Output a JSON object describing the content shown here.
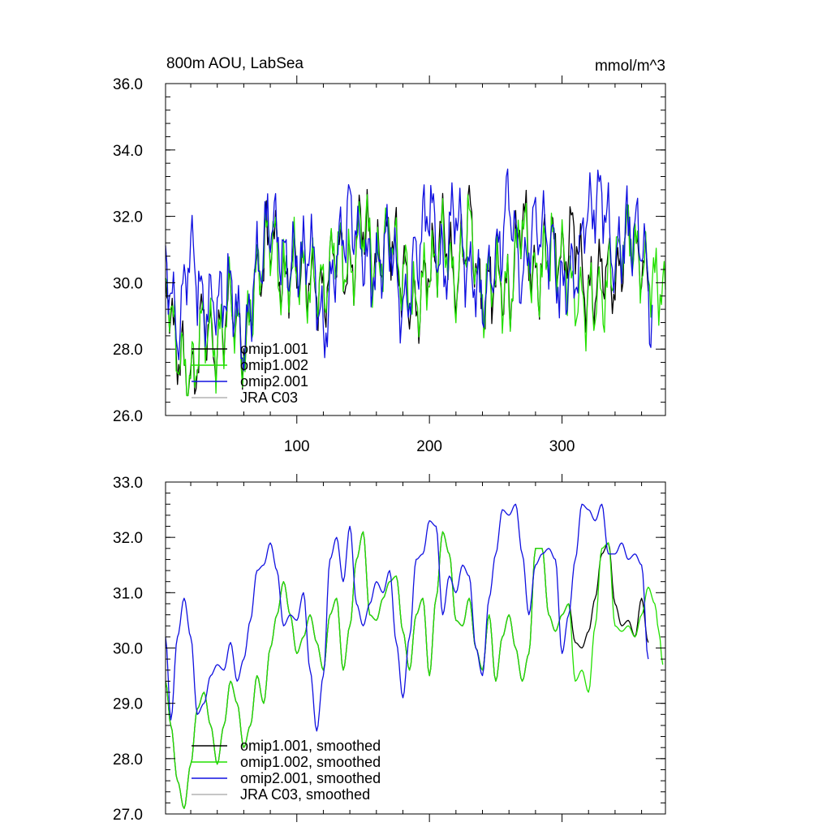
{
  "chart_data": [
    {
      "type": "line",
      "title": "800m AOU, LabSea",
      "units": "mmol/m^3",
      "xlim": [
        1,
        378
      ],
      "ylim": [
        26.0,
        36.0
      ],
      "x_ticks": [
        100,
        200,
        300
      ],
      "y_ticks": [
        "26.0",
        "28.0",
        "30.0",
        "32.0",
        "34.0",
        "36.0"
      ],
      "legend": {
        "placement": "bottom-left",
        "entries": [
          "omip1.001",
          "omip1.002",
          "omip2.001",
          "JRA C03"
        ]
      },
      "series": [
        {
          "name": "omip1.001",
          "color": "#000000",
          "seed": 11,
          "length": 365,
          "base": 30.3,
          "x": [
            1,
            10,
            20,
            30,
            40,
            50,
            60,
            70,
            80,
            90,
            100,
            110,
            120,
            130,
            140,
            150,
            160,
            170,
            180,
            190,
            200,
            210,
            220,
            230,
            240,
            250,
            260,
            270,
            280,
            290,
            300,
            310,
            320,
            330,
            340,
            350,
            360,
            365
          ],
          "values": [
            30.0,
            28.0,
            27.0,
            28.8,
            28.0,
            29.5,
            28.0,
            30.2,
            31.5,
            30.0,
            30.5,
            30.0,
            29.8,
            31.0,
            30.3,
            31.8,
            30.5,
            31.5,
            30.2,
            29.3,
            30.4,
            31.5,
            30.0,
            31.8,
            29.5,
            30.2,
            29.6,
            31.8,
            30.0,
            31.0,
            30.8,
            31.5,
            29.4,
            30.5,
            30.0,
            31.5,
            30.5,
            30.0
          ]
        },
        {
          "name": "omip1.002",
          "color": "#22e000",
          "seed": 23,
          "length": 378,
          "base": 30.3,
          "x": [
            1,
            10,
            20,
            30,
            40,
            50,
            60,
            70,
            80,
            90,
            100,
            110,
            120,
            130,
            140,
            150,
            160,
            170,
            180,
            190,
            200,
            210,
            220,
            230,
            240,
            250,
            260,
            270,
            280,
            290,
            300,
            310,
            320,
            330,
            340,
            350,
            360,
            370,
            378
          ],
          "values": [
            30.0,
            28.0,
            27.0,
            28.8,
            28.0,
            29.5,
            28.0,
            30.2,
            31.5,
            30.0,
            30.5,
            30.0,
            29.8,
            31.0,
            30.3,
            31.8,
            30.5,
            31.5,
            30.2,
            29.3,
            30.4,
            31.5,
            30.0,
            31.8,
            29.5,
            30.2,
            29.6,
            31.8,
            30.0,
            31.0,
            30.8,
            29.5,
            29.4,
            29.7,
            30.6,
            31.5,
            30.5,
            30.0,
            29.6
          ]
        },
        {
          "name": "omip2.001",
          "color": "#1010e0",
          "seed": 37,
          "length": 368,
          "base": 30.7,
          "x": [
            1,
            10,
            20,
            30,
            40,
            50,
            60,
            70,
            80,
            90,
            100,
            110,
            120,
            130,
            140,
            150,
            160,
            170,
            180,
            190,
            200,
            210,
            220,
            230,
            240,
            250,
            260,
            270,
            280,
            290,
            300,
            310,
            320,
            330,
            340,
            350,
            360,
            368
          ],
          "values": [
            30.8,
            28.6,
            31.0,
            29.2,
            29.5,
            29.8,
            28.3,
            30.3,
            32.0,
            30.8,
            30.5,
            31.0,
            28.5,
            30.8,
            32.2,
            30.8,
            30.3,
            31.3,
            29.1,
            30.8,
            32.3,
            30.3,
            32.2,
            30.3,
            29.6,
            30.6,
            32.5,
            30.1,
            31.8,
            31.3,
            29.8,
            30.3,
            32.2,
            32.6,
            30.6,
            31.6,
            31.3,
            29.0
          ]
        },
        {
          "name": "JRA C03",
          "color": "#b4b4b4",
          "values": []
        }
      ]
    },
    {
      "type": "line",
      "title": "",
      "xlim": [
        1,
        378
      ],
      "ylim": [
        27.0,
        33.0
      ],
      "x_ticks": [
        100,
        200,
        300
      ],
      "y_ticks": [
        "27.0",
        "28.0",
        "29.0",
        "30.0",
        "31.0",
        "32.0",
        "33.0"
      ],
      "legend": {
        "placement": "bottom-left",
        "entries": [
          "omip1.001, smoothed",
          "omip1.002, smoothed",
          "omip2.001, smoothed",
          "JRA C03, smoothed"
        ]
      },
      "series": [
        {
          "name": "omip1.001, smoothed",
          "color": "#000000",
          "x": [
            1,
            5,
            10,
            15,
            20,
            25,
            30,
            35,
            40,
            45,
            50,
            55,
            60,
            65,
            70,
            75,
            80,
            85,
            90,
            95,
            100,
            105,
            110,
            115,
            120,
            125,
            130,
            135,
            140,
            145,
            150,
            155,
            160,
            165,
            170,
            175,
            180,
            185,
            190,
            195,
            200,
            205,
            210,
            215,
            220,
            225,
            230,
            235,
            240,
            245,
            250,
            255,
            260,
            265,
            270,
            275,
            280,
            285,
            290,
            295,
            300,
            305,
            310,
            315,
            320,
            325,
            330,
            335,
            340,
            345,
            350,
            355,
            360,
            365
          ],
          "values": [
            29.4,
            28.6,
            27.6,
            27.1,
            27.9,
            28.9,
            29.2,
            28.6,
            27.9,
            28.6,
            29.4,
            29.0,
            28.2,
            28.6,
            29.5,
            29.0,
            30.0,
            30.6,
            31.2,
            30.6,
            29.9,
            30.2,
            30.6,
            30.1,
            29.6,
            30.6,
            30.9,
            29.6,
            30.4,
            31.6,
            32.1,
            30.6,
            30.5,
            30.9,
            31.2,
            31.3,
            30.3,
            29.6,
            30.6,
            30.9,
            29.5,
            30.9,
            32.1,
            31.7,
            30.5,
            30.4,
            30.9,
            30.0,
            29.6,
            30.6,
            29.4,
            30.2,
            30.6,
            30.0,
            29.4,
            29.9,
            31.8,
            31.8,
            30.6,
            30.3,
            30.6,
            30.8,
            30.1,
            30.0,
            30.3,
            30.9,
            31.7,
            31.9,
            30.8,
            30.4,
            30.5,
            30.2,
            30.9,
            30.1
          ]
        },
        {
          "name": "omip1.002, smoothed",
          "color": "#22e000",
          "x": [
            1,
            5,
            10,
            15,
            20,
            25,
            30,
            35,
            40,
            45,
            50,
            55,
            60,
            65,
            70,
            75,
            80,
            85,
            90,
            95,
            100,
            105,
            110,
            115,
            120,
            125,
            130,
            135,
            140,
            145,
            150,
            155,
            160,
            165,
            170,
            175,
            180,
            185,
            190,
            195,
            200,
            205,
            210,
            215,
            220,
            225,
            230,
            235,
            240,
            245,
            250,
            255,
            260,
            265,
            270,
            275,
            280,
            285,
            290,
            295,
            300,
            305,
            310,
            315,
            320,
            325,
            330,
            335,
            340,
            345,
            350,
            355,
            360,
            365,
            370,
            373,
            376
          ],
          "values": [
            29.4,
            28.6,
            27.6,
            27.1,
            27.9,
            28.9,
            29.2,
            28.6,
            27.9,
            28.6,
            29.4,
            29.0,
            28.2,
            28.6,
            29.5,
            29.0,
            30.0,
            30.6,
            31.2,
            30.6,
            29.9,
            30.2,
            30.6,
            30.1,
            29.6,
            30.6,
            30.9,
            29.6,
            30.4,
            31.6,
            32.1,
            30.6,
            30.5,
            30.9,
            31.2,
            31.3,
            30.3,
            29.6,
            30.6,
            30.9,
            29.5,
            30.9,
            32.1,
            31.7,
            30.5,
            30.4,
            30.9,
            30.0,
            29.6,
            30.6,
            29.4,
            30.2,
            30.6,
            30.0,
            29.4,
            29.9,
            31.8,
            31.8,
            30.6,
            30.3,
            30.6,
            30.8,
            29.4,
            29.6,
            29.2,
            30.4,
            31.8,
            31.9,
            30.4,
            30.3,
            30.4,
            30.2,
            30.6,
            31.1,
            30.8,
            30.3,
            29.7
          ]
        },
        {
          "name": "omip2.001, smoothed",
          "color": "#1010e0",
          "x": [
            1,
            5,
            10,
            15,
            20,
            25,
            30,
            35,
            40,
            45,
            50,
            55,
            60,
            65,
            70,
            75,
            80,
            85,
            90,
            95,
            100,
            105,
            110,
            115,
            120,
            125,
            130,
            135,
            140,
            145,
            150,
            155,
            160,
            165,
            170,
            175,
            180,
            185,
            190,
            195,
            200,
            205,
            210,
            215,
            220,
            225,
            230,
            235,
            240,
            245,
            250,
            255,
            260,
            265,
            270,
            275,
            280,
            285,
            290,
            295,
            300,
            305,
            310,
            315,
            320,
            325,
            330,
            335,
            340,
            345,
            350,
            355,
            360,
            365
          ],
          "values": [
            30.2,
            28.7,
            30.2,
            30.9,
            30.2,
            28.8,
            29.0,
            29.5,
            29.7,
            29.6,
            30.1,
            29.4,
            29.8,
            30.5,
            31.4,
            31.5,
            31.9,
            31.4,
            30.4,
            30.6,
            30.5,
            31.0,
            29.6,
            28.5,
            29.5,
            31.6,
            32.0,
            31.2,
            32.2,
            30.8,
            30.4,
            30.8,
            31.2,
            31.0,
            31.4,
            30.1,
            29.1,
            30.2,
            31.6,
            31.7,
            32.3,
            32.2,
            30.6,
            31.3,
            31.0,
            31.5,
            31.3,
            30.0,
            29.5,
            30.9,
            31.7,
            32.5,
            32.4,
            32.6,
            31.7,
            30.6,
            31.5,
            31.7,
            31.8,
            31.6,
            29.9,
            30.6,
            31.6,
            32.6,
            32.5,
            32.3,
            32.6,
            31.7,
            31.7,
            31.9,
            31.6,
            31.7,
            31.5,
            29.8
          ]
        },
        {
          "name": "JRA C03, smoothed",
          "color": "#b4b4b4",
          "values": []
        }
      ]
    }
  ]
}
